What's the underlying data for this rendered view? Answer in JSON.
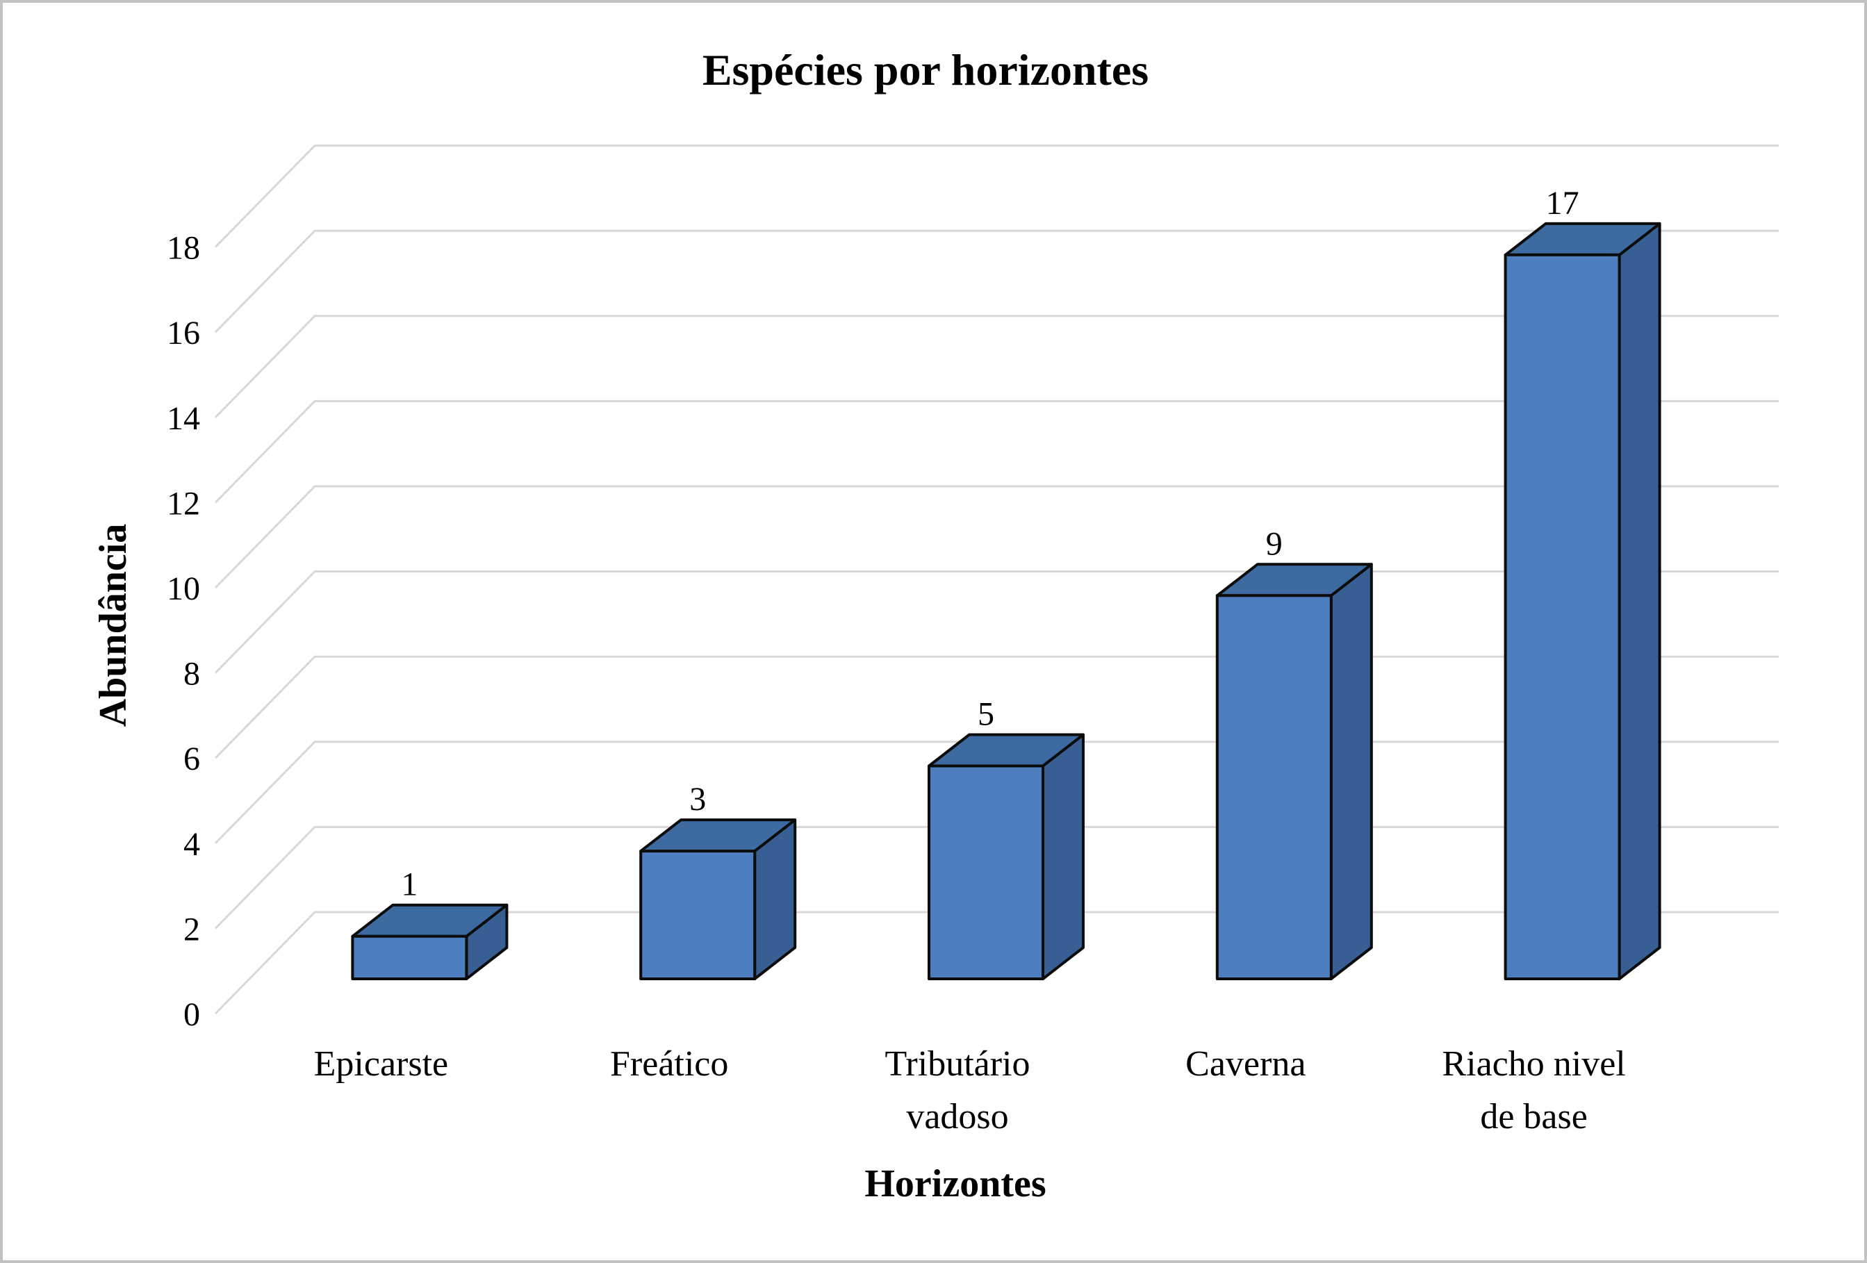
{
  "figure": {
    "title": "Espécies por horizontes"
  },
  "chart_data": {
    "type": "bar",
    "style": "3d-column",
    "title": "Espécies por horizontes",
    "xlabel": "Horizontes",
    "ylabel": "Abundância",
    "categories": [
      "Epicarste",
      "Freático",
      "Tributário vadoso",
      "Caverna",
      "Riacho nivel de base"
    ],
    "category_lines": [
      [
        "Epicarste"
      ],
      [
        "Freático"
      ],
      [
        "Tributário",
        "vadoso"
      ],
      [
        "Caverna"
      ],
      [
        "Riacho nivel",
        "de base"
      ]
    ],
    "values": [
      1,
      3,
      5,
      9,
      17
    ],
    "data_labels": [
      "1",
      "3",
      "5",
      "9",
      "17"
    ],
    "yticks": [
      0,
      2,
      4,
      6,
      8,
      10,
      12,
      14,
      16,
      18
    ],
    "ylim": [
      0,
      18
    ],
    "grid": true,
    "legend": false,
    "colors": {
      "bar_front": "#4d7ebf",
      "bar_top": "#3d6aa1",
      "bar_side": "#375f93",
      "bar_outline": "#0c0c0c",
      "gridline": "#d8d8d8",
      "text": "#000000",
      "frame": "#c2c2c2",
      "background": "#ffffff"
    }
  }
}
